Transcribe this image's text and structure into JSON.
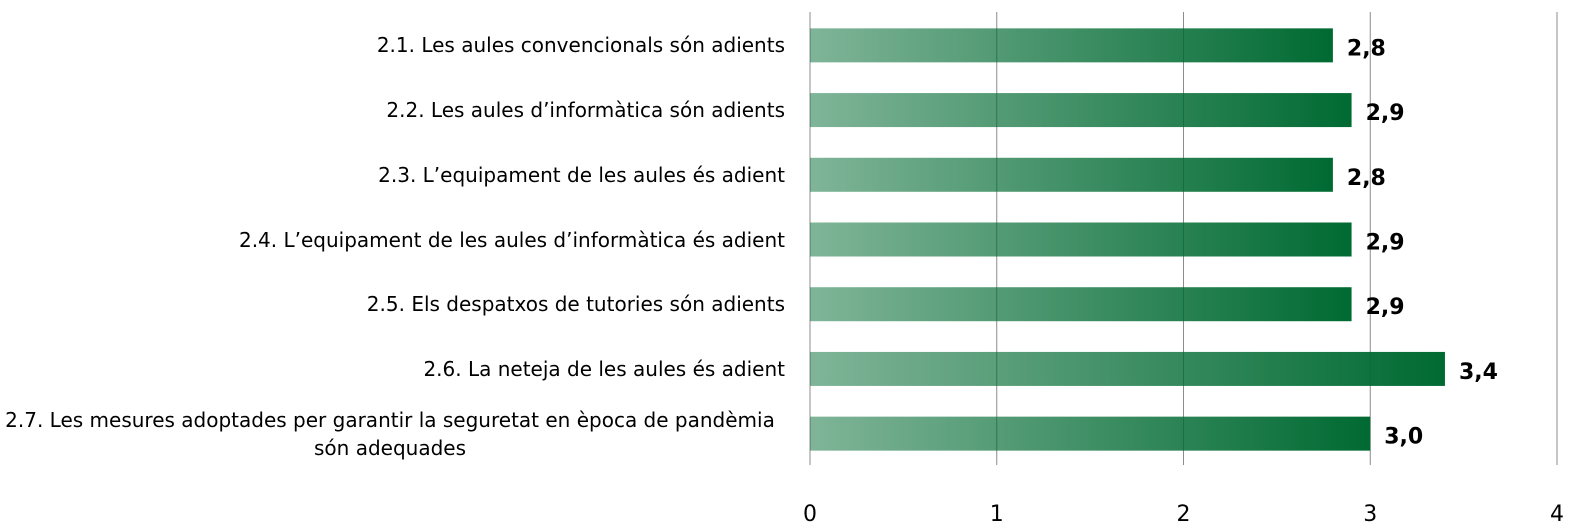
{
  "chart_data": {
    "type": "bar",
    "orientation": "horizontal",
    "categories": [
      "2.1. Les aules convencionals són adients",
      "2.2. Les aules d’informàtica són adients",
      "2.3. L’equipament de les aules és adient",
      "2.4. L’equipament de les aules d’informàtica és adient",
      "2.5. Els despatxos de tutories són adients",
      "2.6. La neteja de les aules és adient",
      "2.7. Les mesures adoptades per garantir la seguretat en època de pandèmia són adequades"
    ],
    "values": [
      2.8,
      2.9,
      2.8,
      2.9,
      2.9,
      3.4,
      3.0
    ],
    "value_labels": [
      "2,8",
      "2,9",
      "2,8",
      "2,9",
      "2,9",
      "3,4",
      "3,0"
    ],
    "color": "#006a32",
    "xlim": [
      0,
      4
    ],
    "xticks": [
      0,
      1,
      2,
      3,
      4
    ],
    "grid": true
  }
}
